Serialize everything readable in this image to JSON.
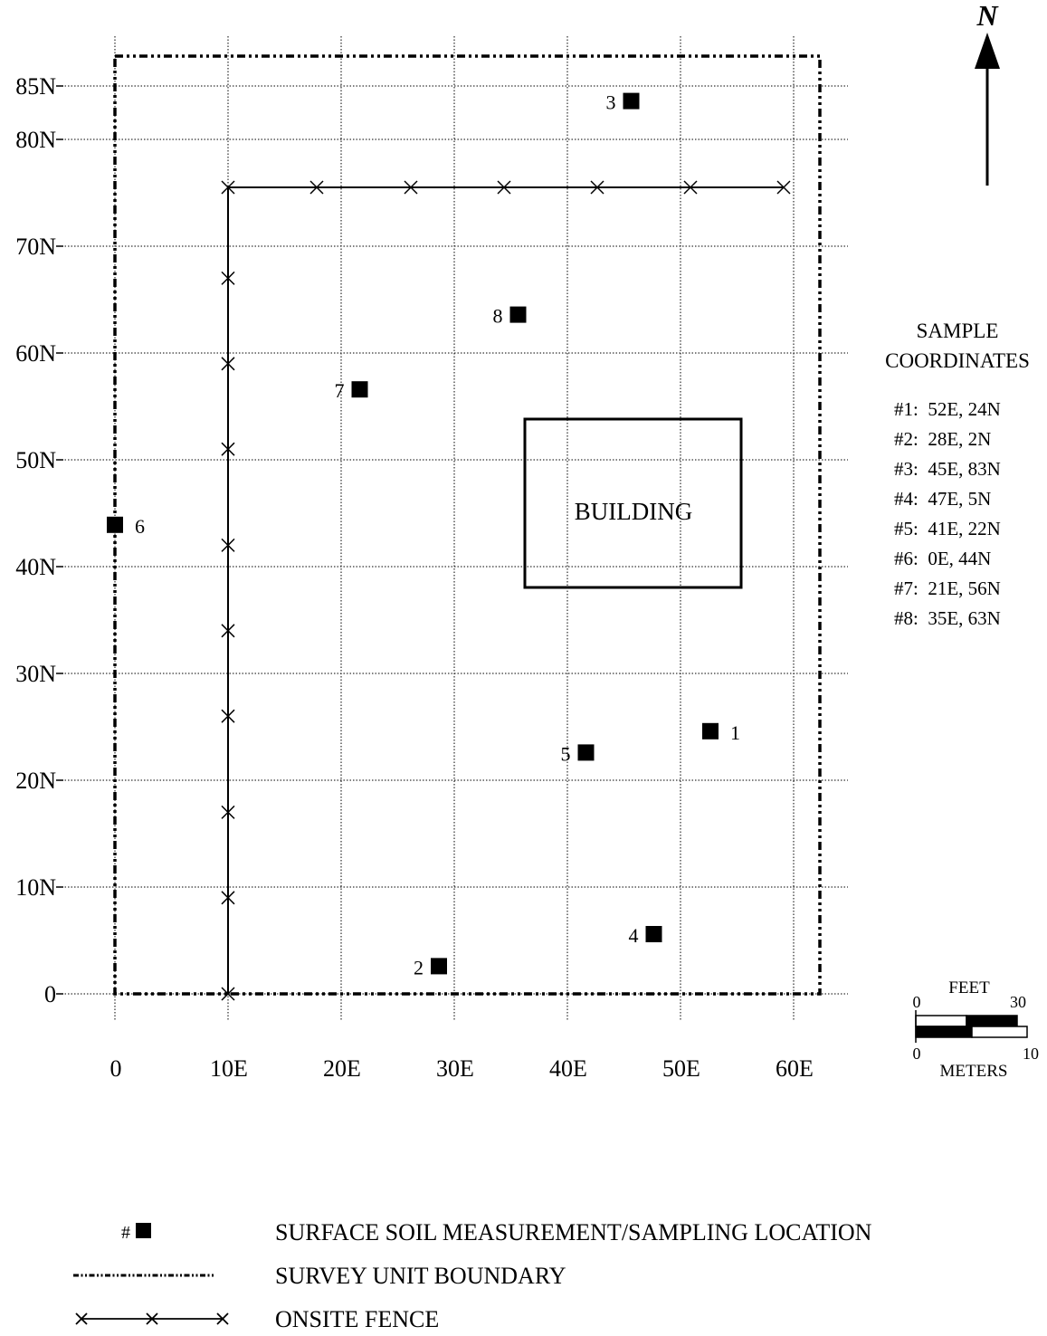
{
  "north_label": "N",
  "building_label": "BUILDING",
  "axis": {
    "y_ticks": [
      "85N",
      "80N",
      "70N",
      "60N",
      "50N",
      "40N",
      "30N",
      "20N",
      "10N",
      "0"
    ],
    "x_ticks": [
      "0",
      "10E",
      "20E",
      "30E",
      "40E",
      "50E",
      "60E"
    ]
  },
  "samples": [
    {
      "label": "1",
      "e": 52,
      "n": 24
    },
    {
      "label": "2",
      "e": 28,
      "n": 2
    },
    {
      "label": "3",
      "e": 45,
      "n": 83
    },
    {
      "label": "4",
      "e": 47,
      "n": 5
    },
    {
      "label": "5",
      "e": 41,
      "n": 22
    },
    {
      "label": "6",
      "e": 0,
      "n": 44
    },
    {
      "label": "7",
      "e": 21,
      "n": 56
    },
    {
      "label": "8",
      "e": 35,
      "n": 63
    }
  ],
  "coordinates_panel": {
    "title_line1": "SAMPLE",
    "title_line2": "COORDINATES",
    "entries": [
      "#1:  52E, 24N",
      "#2:  28E, 2N",
      "#3:  45E, 83N",
      "#4:  47E, 5N",
      "#5:  41E, 22N",
      "#6:  0E, 44N",
      "#7:  21E, 56N",
      "#8:  35E, 63N"
    ]
  },
  "scale_bar": {
    "feet_label": "FEET",
    "feet_min": "0",
    "feet_max": "30",
    "meters_label": "METERS",
    "meters_min": "0",
    "meters_max": "10"
  },
  "legend": {
    "sample_symbol_prefix": "#",
    "sample_location": "SURFACE SOIL MEASUREMENT/SAMPLING LOCATION",
    "survey_boundary": "SURVEY UNIT BOUNDARY",
    "onsite_fence": "ONSITE FENCE"
  }
}
